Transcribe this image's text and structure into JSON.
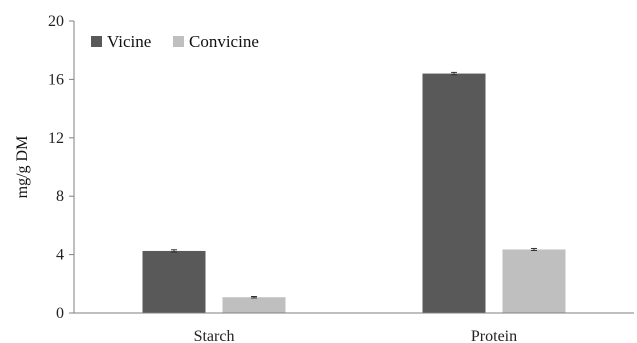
{
  "chart_data": {
    "type": "bar",
    "title": "",
    "xlabel": "",
    "ylabel": "mg/g DM",
    "ylim": [
      0,
      20
    ],
    "yticks": [
      0,
      4,
      8,
      12,
      16,
      20
    ],
    "categories": [
      "Starch",
      "Protein"
    ],
    "series": [
      {
        "name": "Vicine",
        "values": [
          4.25,
          16.4
        ],
        "errors": [
          0.08,
          0.08
        ],
        "color": "#595959"
      },
      {
        "name": "Convicine",
        "values": [
          1.08,
          4.35
        ],
        "errors": [
          0.05,
          0.07
        ],
        "color": "#bfbfbf"
      }
    ],
    "legend_position": "top-left",
    "grid": false
  }
}
